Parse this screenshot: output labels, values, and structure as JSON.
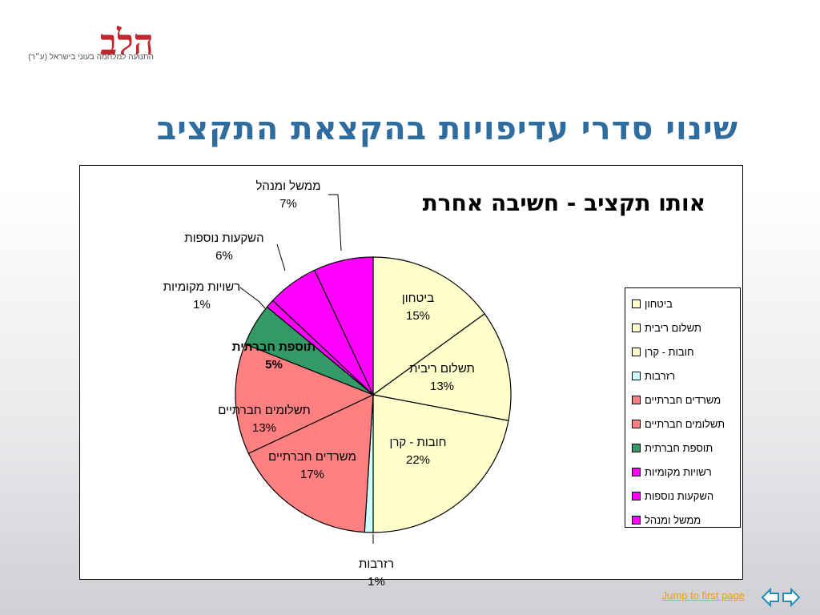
{
  "logo": {
    "mark": "הלב",
    "subtitle": "התנועה למלחמה בעוני בישראל (ע״ר)"
  },
  "page_title": "שינוי סדרי עדיפויות בהקצאת התקציב",
  "chart_data": {
    "type": "pie",
    "title": "אותו תקציב - חשיבה אחרת",
    "slices": [
      {
        "label": "ביטחון",
        "value": 15,
        "display": "15%",
        "color": "#ffffcc"
      },
      {
        "label": "תשלום ריבית",
        "value": 13,
        "display": "13%",
        "color": "#ffffcc"
      },
      {
        "label": "חובות - קרן",
        "value": 22,
        "display": "22%",
        "color": "#ffffcc"
      },
      {
        "label": "רזרבות",
        "value": 1,
        "display": "1%",
        "color": "#ccffff"
      },
      {
        "label": "משרדים חברתיים",
        "value": 17,
        "display": "17%",
        "color": "#ff8080"
      },
      {
        "label": "תשלומים חברתיים",
        "value": 13,
        "display": "13%",
        "color": "#ff8080"
      },
      {
        "label": "תוספת חברתית",
        "value": 5,
        "display": "5%",
        "color": "#339966"
      },
      {
        "label": "רשויות מקומיות",
        "value": 1,
        "display": "1%",
        "color": "#ff00ff"
      },
      {
        "label": "השקעות נוספות",
        "value": 6,
        "display": "6%",
        "color": "#ff00ff"
      },
      {
        "label": "ממשל ומנהל",
        "value": 7,
        "display": "7%",
        "color": "#ff00ff"
      }
    ],
    "legend": [
      "ביטחון",
      "תשלום ריבית",
      "חובות - קרן",
      "רזרבות",
      "משרדים חברתיים",
      "תשלומים חברתיים",
      "תוספת חברתית",
      "רשויות מקומיות",
      "השקעות נוספות",
      "ממשל ומנהל"
    ],
    "legend_position": "right"
  },
  "footer": {
    "jump_link": "Jump to first page"
  },
  "nav": {
    "prev_icon": "arrow-left-icon",
    "next_icon": "arrow-right-icon",
    "color": "#1f8fb8"
  }
}
